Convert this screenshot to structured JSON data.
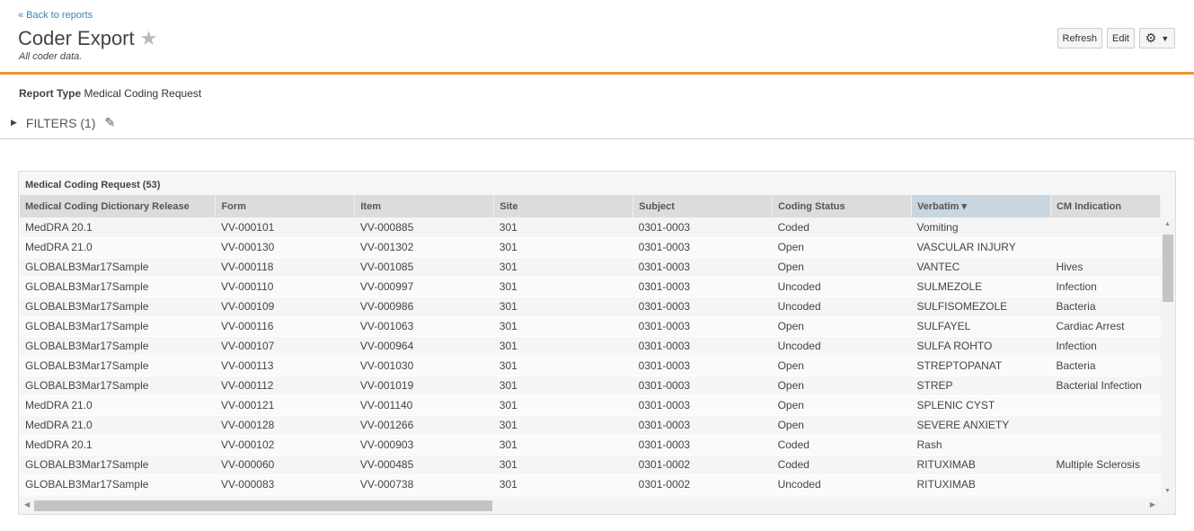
{
  "header": {
    "back_link": "« Back to reports",
    "title": "Coder Export",
    "subtitle": "All coder data.",
    "refresh": "Refresh",
    "edit": "Edit"
  },
  "report_type": {
    "label": "Report Type",
    "value": "Medical Coding Request"
  },
  "filters": {
    "label": "FILTERS (1)"
  },
  "colors": {
    "accent": "#f0962e",
    "link": "#3a84b6"
  },
  "table": {
    "title": "Medical Coding Request (53)",
    "columns": [
      "Medical Coding Dictionary Release",
      "Form",
      "Item",
      "Site",
      "Subject",
      "Coding Status",
      "Verbatim",
      "CM Indication"
    ],
    "sorted_column": "Verbatim",
    "sort_direction": "descending",
    "rows": [
      [
        "MedDRA 20.1",
        "VV-000101",
        "VV-000885",
        "301",
        "0301-0003",
        "Coded",
        "Vomiting",
        ""
      ],
      [
        "MedDRA 21.0",
        "VV-000130",
        "VV-001302",
        "301",
        "0301-0003",
        "Open",
        "VASCULAR INJURY",
        ""
      ],
      [
        "GLOBALB3Mar17Sample",
        "VV-000118",
        "VV-001085",
        "301",
        "0301-0003",
        "Open",
        "VANTEC",
        "Hives"
      ],
      [
        "GLOBALB3Mar17Sample",
        "VV-000110",
        "VV-000997",
        "301",
        "0301-0003",
        "Uncoded",
        "SULMEZOLE",
        "Infection"
      ],
      [
        "GLOBALB3Mar17Sample",
        "VV-000109",
        "VV-000986",
        "301",
        "0301-0003",
        "Uncoded",
        "SULFISOMEZOLE",
        "Bacteria"
      ],
      [
        "GLOBALB3Mar17Sample",
        "VV-000116",
        "VV-001063",
        "301",
        "0301-0003",
        "Open",
        "SULFAYEL",
        "Cardiac Arrest"
      ],
      [
        "GLOBALB3Mar17Sample",
        "VV-000107",
        "VV-000964",
        "301",
        "0301-0003",
        "Uncoded",
        "SULFA ROHTO",
        "Infection"
      ],
      [
        "GLOBALB3Mar17Sample",
        "VV-000113",
        "VV-001030",
        "301",
        "0301-0003",
        "Open",
        "STREPTOPANAT",
        "Bacteria"
      ],
      [
        "GLOBALB3Mar17Sample",
        "VV-000112",
        "VV-001019",
        "301",
        "0301-0003",
        "Open",
        "STREP",
        "Bacterial Infection"
      ],
      [
        "MedDRA 21.0",
        "VV-000121",
        "VV-001140",
        "301",
        "0301-0003",
        "Open",
        "SPLENIC CYST",
        ""
      ],
      [
        "MedDRA 21.0",
        "VV-000128",
        "VV-001266",
        "301",
        "0301-0003",
        "Open",
        "SEVERE ANXIETY",
        ""
      ],
      [
        "MedDRA 20.1",
        "VV-000102",
        "VV-000903",
        "301",
        "0301-0003",
        "Coded",
        "Rash",
        ""
      ],
      [
        "GLOBALB3Mar17Sample",
        "VV-000060",
        "VV-000485",
        "301",
        "0301-0002",
        "Coded",
        "RITUXIMAB",
        "Multiple Sclerosis"
      ],
      [
        "GLOBALB3Mar17Sample",
        "VV-000083",
        "VV-000738",
        "301",
        "0301-0002",
        "Uncoded",
        "RITUXIMAB",
        ""
      ]
    ]
  }
}
